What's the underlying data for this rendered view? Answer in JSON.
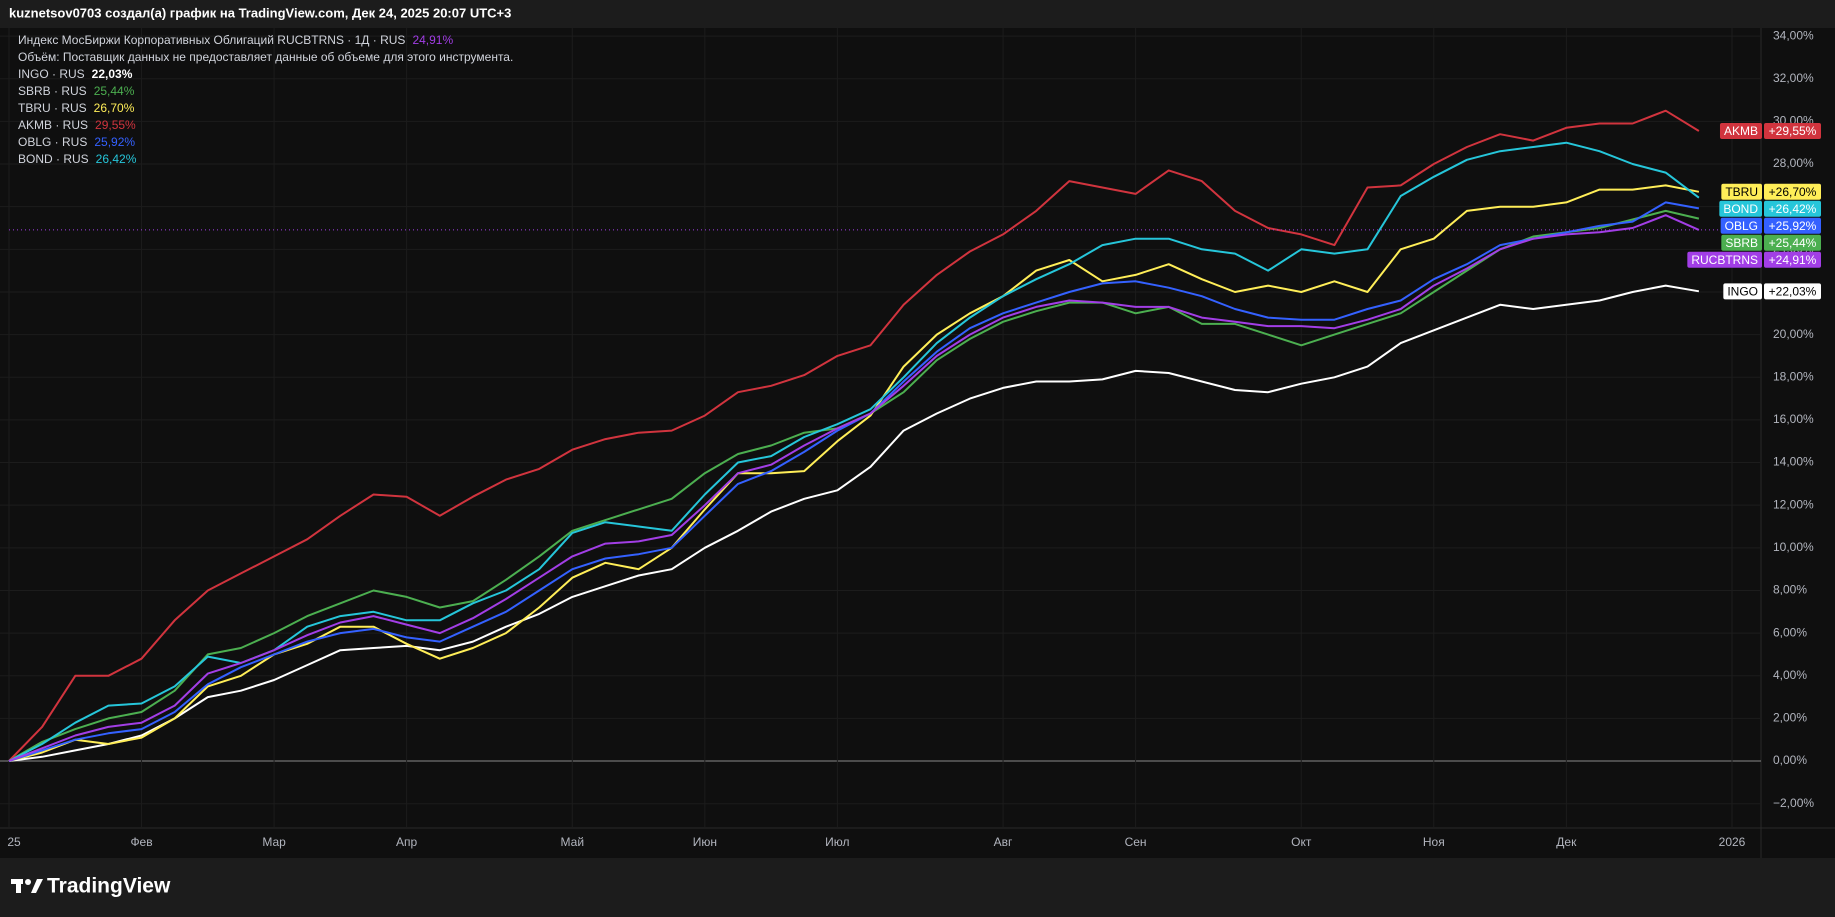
{
  "header": "kuznetsov0703 создал(а) график на TradingView.com, Дек 24, 2025 20:07 UTC+3",
  "footer_brand": "TradingView",
  "chart_data": {
    "type": "line",
    "volume_note": "Объём: Поставщик данных не предоставляет данные об объеме для этого инструмента.",
    "categories": [
      "25",
      null,
      null,
      null,
      "Фев",
      null,
      null,
      null,
      "Мар",
      null,
      null,
      null,
      "Апр",
      null,
      null,
      null,
      null,
      "Май",
      null,
      null,
      null,
      "Июн",
      null,
      null,
      null,
      "Июл",
      null,
      null,
      null,
      null,
      "Авг",
      null,
      null,
      null,
      "Сен",
      null,
      null,
      null,
      null,
      "Окт",
      null,
      null,
      null,
      "Ноя",
      null,
      null,
      null,
      "Дек",
      null,
      null,
      null,
      null,
      "2026"
    ],
    "series": [
      {
        "name": "Индекс МосБиржи Корпоративных Облигаций RUCBTRNS · 1Д · RUS",
        "ticker": "RUCBTRNS",
        "last_label": "24,91%",
        "badge_label": "+24,91%",
        "color": "#a23ee6",
        "values": [
          0,
          0.6,
          1.2,
          1.6,
          1.8,
          2.6,
          4.1,
          4.6,
          5.2,
          5.9,
          6.5,
          6.8,
          6.4,
          6.0,
          6.7,
          7.6,
          8.6,
          9.6,
          10.2,
          10.3,
          10.6,
          12.0,
          13.5,
          13.9,
          14.8,
          15.6,
          16.3,
          17.6,
          19.0,
          20.0,
          20.8,
          21.3,
          21.6,
          21.5,
          21.3,
          21.3,
          20.8,
          20.6,
          20.4,
          20.4,
          20.3,
          20.7,
          21.2,
          22.3,
          23.1,
          24.0,
          24.5,
          24.7,
          24.8,
          25.0,
          25.6,
          24.91,
          null
        ]
      },
      {
        "name": "INGO · RUS",
        "ticker": "INGO",
        "last_label": "22,03%",
        "badge_label": "+22,03%",
        "color": "#ffffff",
        "values": [
          0,
          0.2,
          0.5,
          0.8,
          1.2,
          2.0,
          3.0,
          3.3,
          3.8,
          4.5,
          5.2,
          5.3,
          5.4,
          5.2,
          5.6,
          6.3,
          6.9,
          7.7,
          8.2,
          8.7,
          9.0,
          10.0,
          10.8,
          11.7,
          12.3,
          12.7,
          13.8,
          15.5,
          16.3,
          17.0,
          17.5,
          17.8,
          17.8,
          17.9,
          18.3,
          18.2,
          17.8,
          17.4,
          17.3,
          17.7,
          18.0,
          18.5,
          19.6,
          20.2,
          20.8,
          21.4,
          21.2,
          21.4,
          21.6,
          22.0,
          22.3,
          22.03,
          null
        ]
      },
      {
        "name": "SBRB · RUS",
        "ticker": "SBRB",
        "last_label": "25,44%",
        "badge_label": "+25,44%",
        "color": "#4caf50",
        "values": [
          0,
          0.9,
          1.5,
          2.0,
          2.3,
          3.3,
          5.0,
          5.3,
          6.0,
          6.8,
          7.4,
          8.0,
          7.7,
          7.2,
          7.5,
          8.5,
          9.6,
          10.8,
          11.3,
          11.8,
          12.3,
          13.5,
          14.4,
          14.8,
          15.4,
          15.6,
          16.3,
          17.3,
          18.8,
          19.8,
          20.6,
          21.1,
          21.5,
          21.5,
          21.0,
          21.3,
          20.5,
          20.5,
          20.0,
          19.5,
          20.0,
          20.5,
          21.0,
          22.0,
          23.0,
          24.0,
          24.6,
          24.8,
          25.0,
          25.4,
          25.8,
          25.44,
          null
        ]
      },
      {
        "name": "TBRU · RUS",
        "ticker": "TBRU",
        "last_label": "26,70%",
        "badge_label": "+26,70%",
        "color": "#ffee58",
        "values": [
          0,
          0.4,
          1.0,
          0.8,
          1.1,
          2.0,
          3.5,
          4.0,
          5.0,
          5.5,
          6.3,
          6.3,
          5.5,
          4.8,
          5.3,
          6.0,
          7.2,
          8.6,
          9.3,
          9.0,
          10.0,
          11.8,
          13.5,
          13.5,
          13.6,
          15.0,
          16.2,
          18.5,
          20.0,
          21.0,
          21.8,
          23.0,
          23.5,
          22.5,
          22.8,
          23.3,
          22.6,
          22.0,
          22.3,
          22.0,
          22.5,
          22.0,
          24.0,
          24.5,
          25.8,
          26.0,
          26.0,
          26.2,
          26.8,
          26.8,
          27.0,
          26.7,
          null
        ]
      },
      {
        "name": "AKMB · RUS",
        "ticker": "AKMB",
        "last_label": "29,55%",
        "badge_label": "+29,55%",
        "color": "#d1343e",
        "values": [
          0,
          1.6,
          4.0,
          4.0,
          4.8,
          6.6,
          8.0,
          8.8,
          9.6,
          10.4,
          11.5,
          12.5,
          12.4,
          11.5,
          12.4,
          13.2,
          13.7,
          14.6,
          15.1,
          15.4,
          15.5,
          16.2,
          17.3,
          17.6,
          18.1,
          19.0,
          19.5,
          21.4,
          22.8,
          23.9,
          24.7,
          25.8,
          27.2,
          26.9,
          26.6,
          27.7,
          27.2,
          25.8,
          25.0,
          24.7,
          24.2,
          26.9,
          27.0,
          28.0,
          28.8,
          29.4,
          29.1,
          29.7,
          29.9,
          29.9,
          30.5,
          29.55,
          null
        ]
      },
      {
        "name": "OBLG · RUS",
        "ticker": "OBLG",
        "last_label": "25,92%",
        "badge_label": "+25,92%",
        "color": "#3461ff",
        "values": [
          0,
          0.5,
          1.0,
          1.3,
          1.5,
          2.3,
          3.6,
          4.4,
          5.0,
          5.6,
          6.0,
          6.2,
          5.8,
          5.6,
          6.3,
          7.0,
          8.0,
          9.0,
          9.5,
          9.7,
          10.0,
          11.5,
          13.0,
          13.6,
          14.5,
          15.5,
          16.3,
          17.8,
          19.2,
          20.3,
          21.0,
          21.5,
          22.0,
          22.4,
          22.5,
          22.2,
          21.8,
          21.2,
          20.8,
          20.7,
          20.7,
          21.2,
          21.6,
          22.6,
          23.3,
          24.2,
          24.5,
          24.8,
          25.1,
          25.3,
          26.2,
          25.92,
          null
        ]
      },
      {
        "name": "BOND · RUS",
        "ticker": "BOND",
        "last_label": "26,42%",
        "badge_label": "+26,42%",
        "color": "#26c6da",
        "values": [
          0,
          0.8,
          1.8,
          2.6,
          2.7,
          3.5,
          4.9,
          4.6,
          5.2,
          6.3,
          6.8,
          7.0,
          6.6,
          6.6,
          7.4,
          8.0,
          9.0,
          10.7,
          11.2,
          11.0,
          10.8,
          12.5,
          14.0,
          14.3,
          15.2,
          15.8,
          16.5,
          18.0,
          19.6,
          20.8,
          21.8,
          22.6,
          23.3,
          24.2,
          24.5,
          24.5,
          24.0,
          23.8,
          23.0,
          24.0,
          23.8,
          24.0,
          26.5,
          27.4,
          28.2,
          28.6,
          28.8,
          29.0,
          28.6,
          28.0,
          27.6,
          26.42,
          null
        ]
      }
    ],
    "ylim": [
      -3.14,
      34.38
    ],
    "yticks": [
      {
        "value": -2,
        "label": "−2,00%"
      },
      {
        "value": 0,
        "label": "0,00%"
      },
      {
        "value": 2,
        "label": "2,00%"
      },
      {
        "value": 4,
        "label": "4,00%"
      },
      {
        "value": 6,
        "label": "6,00%"
      },
      {
        "value": 8,
        "label": "8,00%"
      },
      {
        "value": 10,
        "label": "10,00%"
      },
      {
        "value": 12,
        "label": "12,00%"
      },
      {
        "value": 14,
        "label": "14,00%"
      },
      {
        "value": 16,
        "label": "16,00%"
      },
      {
        "value": 18,
        "label": "18,00%"
      },
      {
        "value": 20,
        "label": "20,00%"
      },
      {
        "value": 22,
        "label": "22,00%"
      },
      {
        "value": 24,
        "label": "24,00%"
      },
      {
        "value": 26,
        "label": "26,00%"
      },
      {
        "value": 28,
        "label": "28,00%"
      },
      {
        "value": 30,
        "label": "30,00%"
      },
      {
        "value": 32,
        "label": "32,00%"
      },
      {
        "value": 34,
        "label": "34,00%"
      }
    ],
    "grid": true
  }
}
